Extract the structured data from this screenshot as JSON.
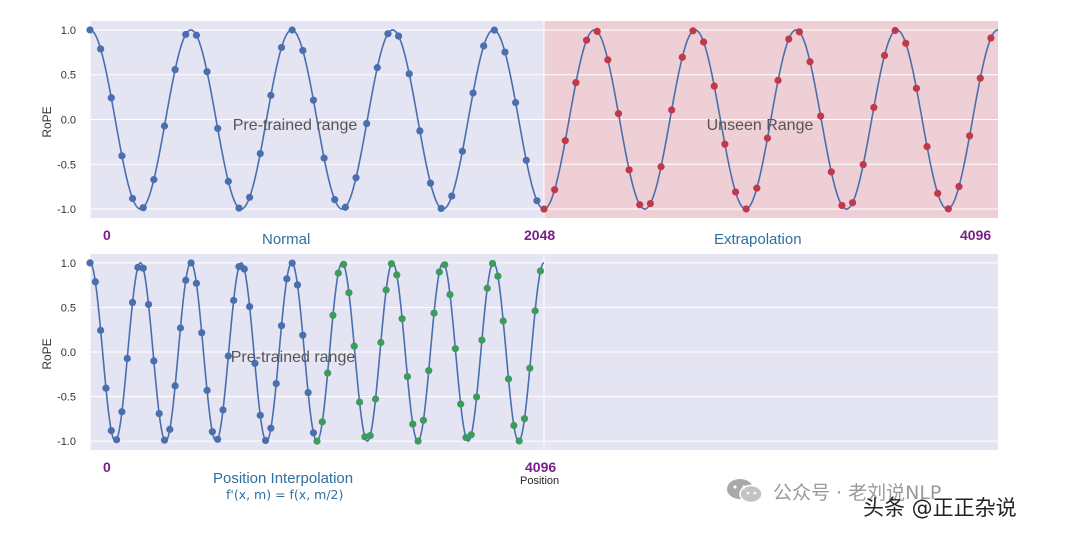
{
  "chart_data": [
    {
      "type": "line",
      "ylabel": "RoPE",
      "xlim": [
        0,
        4096
      ],
      "ylim": [
        -1.1,
        1.1
      ],
      "yticks": [
        "1.0",
        "0.5",
        "0.0",
        "-0.5",
        "-1.0"
      ],
      "xticks": [
        "0",
        "2048",
        "4096"
      ],
      "grid": true,
      "annotations": [
        "Pre-trained range",
        "Unseen Range"
      ],
      "captions": [
        "Normal",
        "Extrapolation"
      ],
      "curve": {
        "function": "cos",
        "period": 455,
        "x_range": [
          0,
          4096
        ]
      },
      "series": [
        {
          "name": "",
          "color": "#4a6fae",
          "x_range": [
            0,
            2048
          ],
          "point_spacing": 48
        },
        {
          "name": "",
          "color": "#c0394a",
          "x_range": [
            2048,
            4096
          ],
          "point_spacing": 48
        }
      ],
      "shaded_regions": [
        {
          "x_range": [
            0,
            2048
          ],
          "color": "#e4e4f2"
        },
        {
          "x_range": [
            2048,
            4096
          ],
          "color": "#eecfd5"
        }
      ]
    },
    {
      "type": "line",
      "ylabel": "RoPE",
      "xlabel": "Position",
      "xlim": [
        0,
        4096
      ],
      "ylim": [
        -1.1,
        1.1
      ],
      "yticks": [
        "1.0",
        "0.5",
        "0.0",
        "-0.5",
        "-1.0"
      ],
      "xticks": [
        "0",
        "4096"
      ],
      "grid": true,
      "annotations": [
        "Pre-trained range"
      ],
      "captions": [
        "Position Interpolation",
        "f'(x, m) = f(x, m/2)"
      ],
      "curve": {
        "function": "cos",
        "period": 455,
        "x_range": [
          0,
          4096
        ]
      },
      "series": [
        {
          "name": "",
          "color": "#4a6fae",
          "x_range": [
            0,
            2048
          ],
          "point_spacing": 48
        },
        {
          "name": "",
          "color": "#3f9a5e",
          "x_range": [
            2048,
            4096
          ],
          "point_spacing": 48
        }
      ],
      "shaded_regions": [
        {
          "x_range": [
            0,
            4096
          ],
          "color": "#e4e4f2"
        }
      ]
    }
  ],
  "watermark": {
    "text1": "公众号 · 老刘说NLP",
    "text2": "头条 @正正杂说",
    "icon": "wechat-icon"
  }
}
